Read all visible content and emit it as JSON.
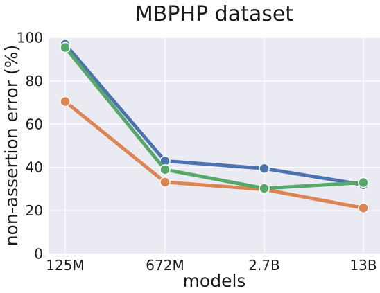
{
  "chart_data": {
    "type": "line",
    "title": "MBPHP dataset",
    "xlabel": "models",
    "ylabel": "non-assertion error (%)",
    "categories": [
      "125M",
      "672M",
      "2.7B",
      "13B"
    ],
    "yticks": [
      0,
      20,
      40,
      60,
      80,
      100
    ],
    "ylim": [
      0,
      100
    ],
    "grid": true,
    "legend": "none",
    "series": [
      {
        "color": "#4c72b0",
        "values": [
          97,
          43,
          39.5,
          32
        ]
      },
      {
        "color": "#dd8452",
        "values": [
          70.5,
          33.2,
          29.8,
          21.2
        ]
      },
      {
        "color": "#55a868",
        "values": [
          95.5,
          39,
          30.3,
          33
        ]
      }
    ],
    "background_color": "#eaeaf2"
  }
}
